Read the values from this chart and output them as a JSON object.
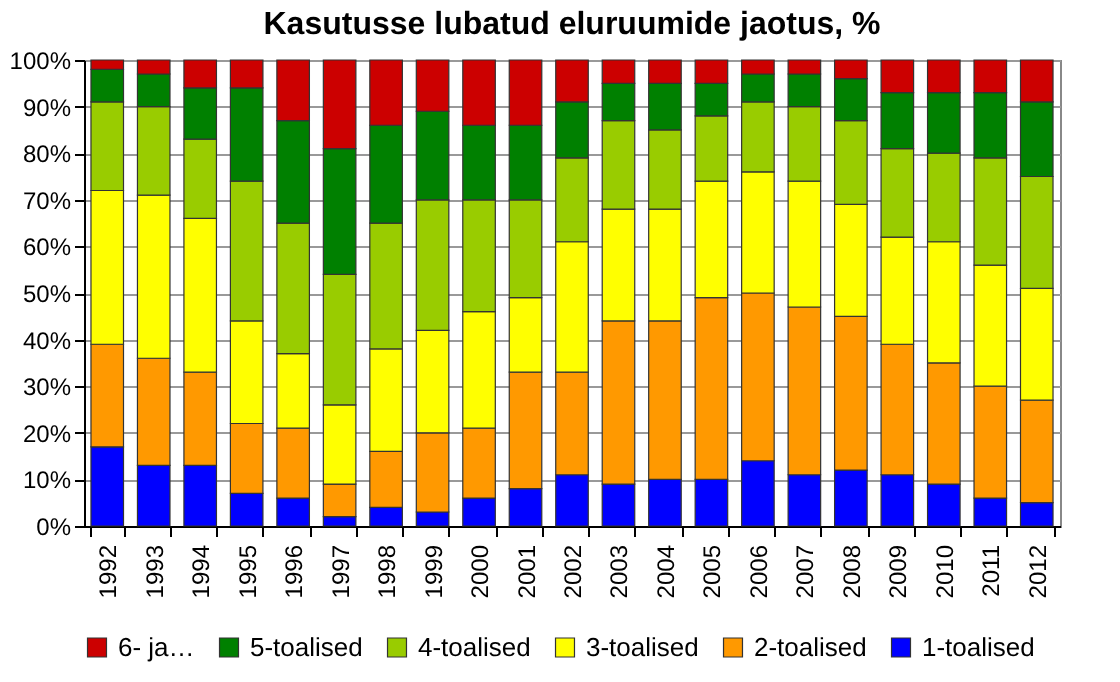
{
  "chart_data": {
    "type": "bar",
    "title": "Kasutusse lubatud eluruumide jaotus, %",
    "stacked": true,
    "grid": "y",
    "legend": "bottom",
    "categories": [
      "1992",
      "1993",
      "1994",
      "1995",
      "1996",
      "1997",
      "1998",
      "1999",
      "2000",
      "2001",
      "2002",
      "2003",
      "2004",
      "2005",
      "2006",
      "2007",
      "2008",
      "2009",
      "2010",
      "2011",
      "2012"
    ],
    "ylim": [
      0,
      100
    ],
    "yticks": [
      {
        "value": 0,
        "label": "0%"
      },
      {
        "value": 10,
        "label": "10%"
      },
      {
        "value": 20,
        "label": "20%"
      },
      {
        "value": 30,
        "label": "30%"
      },
      {
        "value": 40,
        "label": "40%"
      },
      {
        "value": 50,
        "label": "50%"
      },
      {
        "value": 60,
        "label": "60%"
      },
      {
        "value": 70,
        "label": "70%"
      },
      {
        "value": 80,
        "label": "80%"
      },
      {
        "value": 90,
        "label": "90%"
      },
      {
        "value": 100,
        "label": "100%"
      }
    ],
    "series": [
      {
        "name": "1-toalised",
        "color": "#0000ff",
        "values": [
          17,
          13,
          13,
          7,
          6,
          2,
          4,
          3,
          6,
          8,
          11,
          9,
          10,
          10,
          14,
          11,
          12,
          11,
          9,
          6,
          5
        ]
      },
      {
        "name": "2-toalised",
        "color": "#ff9900",
        "values": [
          22,
          23,
          20,
          15,
          15,
          7,
          12,
          17,
          15,
          25,
          22,
          35,
          34,
          39,
          36,
          36,
          33,
          28,
          26,
          24,
          22
        ]
      },
      {
        "name": "3-toalised",
        "color": "#ffff00",
        "values": [
          33,
          35,
          33,
          22,
          16,
          17,
          22,
          22,
          25,
          16,
          28,
          24,
          24,
          25,
          26,
          27,
          24,
          23,
          26,
          26,
          24
        ]
      },
      {
        "name": "4-toalised",
        "color": "#99cc00",
        "values": [
          19,
          19,
          17,
          30,
          28,
          28,
          27,
          28,
          24,
          21,
          18,
          19,
          17,
          14,
          15,
          16,
          18,
          19,
          19,
          23,
          24
        ]
      },
      {
        "name": "5-toalised",
        "color": "#008000",
        "values": [
          7,
          7,
          11,
          20,
          22,
          27,
          21,
          19,
          16,
          16,
          12,
          8,
          10,
          7,
          6,
          7,
          9,
          12,
          13,
          14,
          16
        ]
      },
      {
        "name": "6- ja…",
        "color": "#cc0000",
        "values": [
          2,
          3,
          6,
          6,
          13,
          19,
          14,
          11,
          14,
          14,
          9,
          5,
          5,
          5,
          3,
          3,
          4,
          7,
          7,
          7,
          9
        ]
      }
    ]
  }
}
